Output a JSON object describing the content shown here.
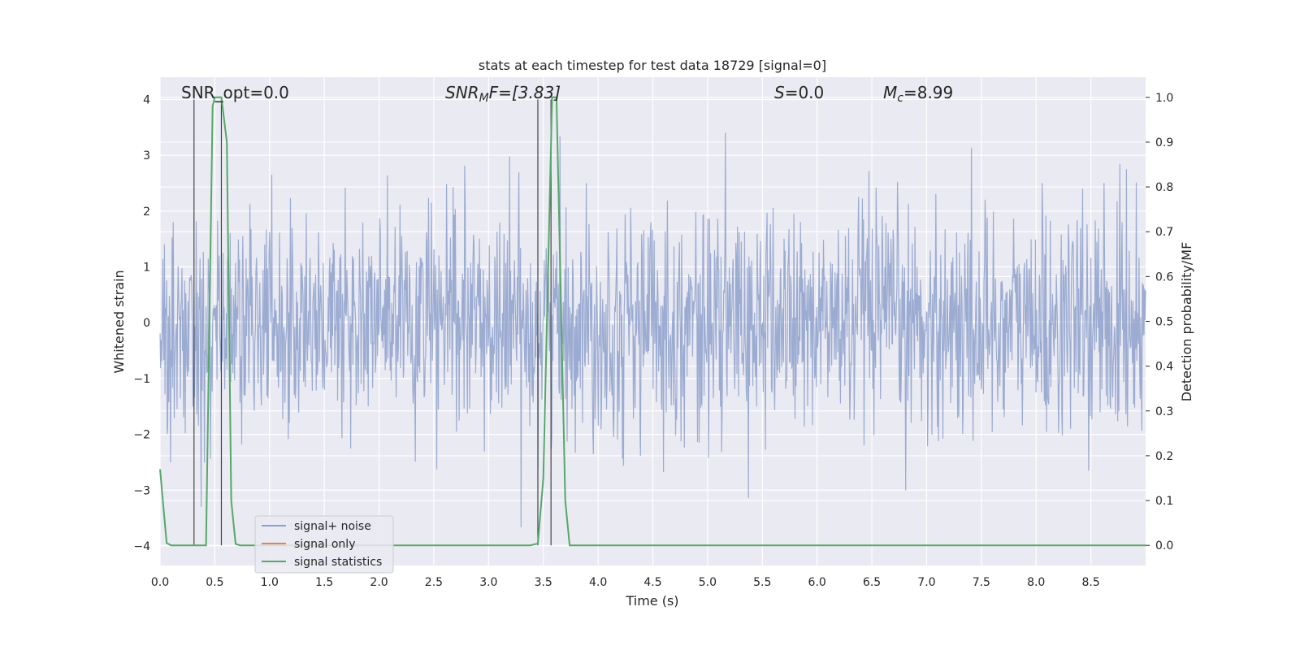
{
  "chart_data": {
    "type": "line",
    "title": "stats at each timestep for test data 18729 [signal=0]",
    "xlabel": "Time (s)",
    "ylabel": "Whitened strain",
    "ylabel_right": "Detection probability/MF",
    "xlim": [
      0.0,
      9.0
    ],
    "ylim": [
      -4.35,
      4.4
    ],
    "ylim_right": [
      -0.045,
      1.045
    ],
    "x_ticks": [
      "0.0",
      "0.5",
      "1.0",
      "1.5",
      "2.0",
      "2.5",
      "3.0",
      "3.5",
      "4.0",
      "4.5",
      "5.0",
      "5.5",
      "6.0",
      "6.5",
      "7.0",
      "7.5",
      "8.0",
      "8.5"
    ],
    "y_ticks": [
      "4",
      "3",
      "2",
      "1",
      "0",
      "−1",
      "−2",
      "−3",
      "−4"
    ],
    "y_ticks_right": [
      "1.0",
      "0.9",
      "0.8",
      "0.7",
      "0.6",
      "0.5",
      "0.4",
      "0.3",
      "0.2",
      "0.1",
      "0.0"
    ],
    "grid": true,
    "legend_position": "lower-left",
    "annotations": {
      "snr_opt": "SNR_opt=0.0",
      "snr_mf_label": "SNR",
      "snr_mf_sub": "M",
      "snr_mf_tail": "F=[3.83]",
      "s_label": "S",
      "s_tail": "=0.0",
      "mc_label": "M",
      "mc_sub": "c",
      "mc_tail": "=8.99"
    },
    "series": [
      {
        "name": "signal+ noise",
        "color": "#8da0cb",
        "description": "whitened strain time series, approx. +/-1.6 bulk with spikes up to about 4 and down to about -4",
        "x_range": [
          0.0,
          9.0
        ],
        "n_samples": 1800,
        "amplitude_bulk": 1.6,
        "extreme_max": 4.0,
        "extreme_min": -3.98
      },
      {
        "name": "signal only",
        "color": "#dd8452",
        "x": [],
        "y": []
      },
      {
        "name": "signal statistics",
        "color": "#55a868",
        "axis": "right",
        "x": [
          0.0,
          0.06,
          0.1,
          0.3,
          0.38,
          0.42,
          0.48,
          0.5,
          0.56,
          0.61,
          0.65,
          0.69,
          0.73,
          0.8,
          1.0,
          3.38,
          3.45,
          3.5,
          3.58,
          3.62,
          3.7,
          3.74,
          4.0,
          9.0
        ],
        "y": [
          0.17,
          0.005,
          0.0,
          0.0,
          0.0,
          0.0,
          0.98,
          1.0,
          1.0,
          0.9,
          0.1,
          0.003,
          0.0,
          0.0,
          0.0,
          0.0,
          0.004,
          0.15,
          1.0,
          1.0,
          0.1,
          0.0,
          0.0,
          0.0
        ]
      }
    ],
    "vertical_markers": {
      "color": "#444444",
      "x": [
        0.31,
        0.56,
        3.45,
        3.57
      ]
    }
  },
  "legend": {
    "items": [
      {
        "label": "signal+ noise",
        "color": "#8da0cb"
      },
      {
        "label": "signal only",
        "color": "#dd8452"
      },
      {
        "label": "signal statistics",
        "color": "#55a868"
      }
    ]
  }
}
